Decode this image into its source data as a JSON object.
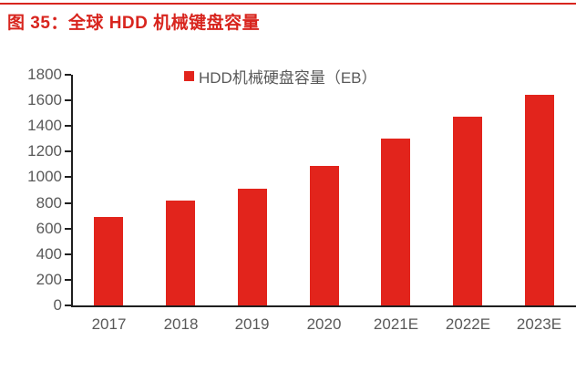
{
  "page": {
    "title": "图 35：全球 HDD 机械键盘容量"
  },
  "colors": {
    "bar_red": "#E2241C",
    "title_red": "#D8251E",
    "axis": "#1F1F1F",
    "label_gray": "#595959",
    "background": "#FFFFFF"
  },
  "chart_data": {
    "type": "bar",
    "title": "",
    "categories": [
      "2017",
      "2018",
      "2019",
      "2020",
      "2021E",
      "2022E",
      "2023E"
    ],
    "series": [
      {
        "name": "HDD机械硬盘容量（EB）",
        "values": [
          690,
          815,
          910,
          1090,
          1300,
          1475,
          1640
        ]
      }
    ],
    "xlabel": "",
    "ylabel": "",
    "ylim": [
      0,
      1800
    ],
    "ytick_step": 200,
    "grid": false,
    "legend_position": "top-center",
    "unit": "EB"
  }
}
